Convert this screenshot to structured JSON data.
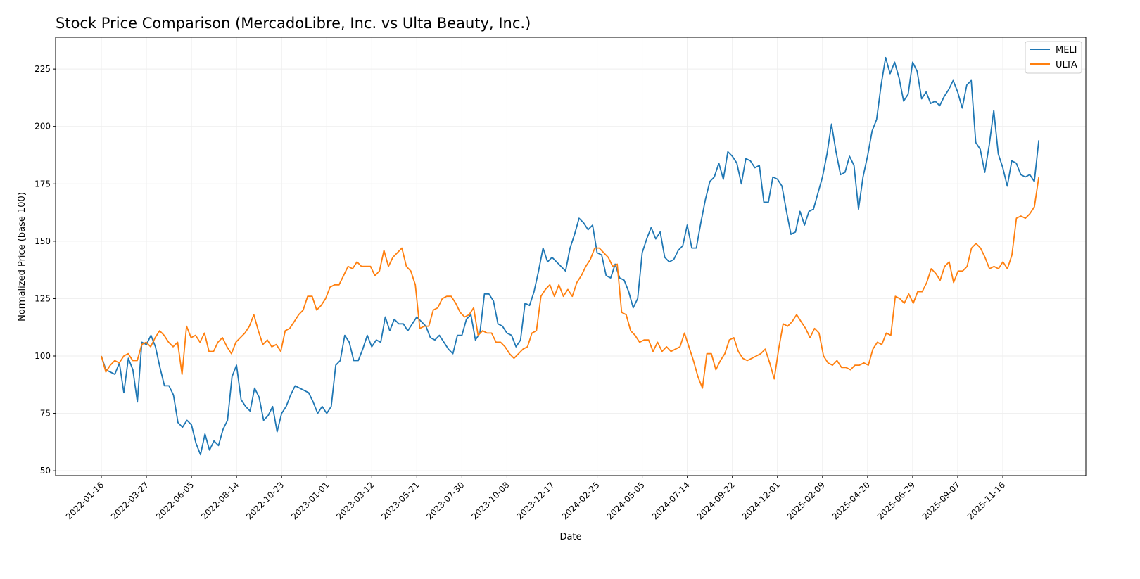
{
  "chart_data": {
    "type": "line",
    "title": "Stock Price Comparison (MercadoLibre, Inc. vs Ulta Beauty, Inc.)",
    "xlabel": "Date",
    "ylabel": "Normalized Price (base 100)",
    "ylim": [
      48,
      239
    ],
    "yticks": [
      50,
      75,
      100,
      125,
      150,
      175,
      200,
      225
    ],
    "xticks": [
      "2022-01-16",
      "2022-03-27",
      "2022-06-05",
      "2022-08-14",
      "2022-10-23",
      "2023-01-01",
      "2023-03-12",
      "2023-05-21",
      "2023-07-30",
      "2023-10-08",
      "2023-12-17",
      "2024-02-25",
      "2024-05-05",
      "2024-07-14",
      "2024-09-22",
      "2024-12-01",
      "2025-02-09",
      "2025-04-20",
      "2025-06-29",
      "2025-09-07",
      "2025-11-16"
    ],
    "x_start": "2022-01-16",
    "x_end": "2026-01-11",
    "grid": true,
    "legend": "top-right",
    "series": [
      {
        "name": "MELI",
        "color": "#1f77b4",
        "values": [
          100,
          94,
          93,
          92,
          97,
          84,
          99,
          94,
          80,
          106,
          105,
          109,
          104,
          95,
          87,
          87,
          83,
          71,
          69,
          72,
          70,
          62,
          57,
          66,
          59,
          63,
          61,
          68,
          72,
          91,
          96,
          81,
          78,
          76,
          86,
          82,
          72,
          74,
          78,
          67,
          75,
          78,
          83,
          87,
          86,
          85,
          84,
          80,
          75,
          78,
          75,
          78,
          96,
          98,
          109,
          106,
          98,
          98,
          103,
          109,
          104,
          107,
          106,
          117,
          111,
          116,
          114,
          114,
          111,
          114,
          117,
          115,
          113,
          108,
          107,
          109,
          106,
          103,
          101,
          109,
          109,
          116,
          118,
          107,
          110,
          127,
          127,
          124,
          114,
          113,
          110,
          109,
          104,
          107,
          123,
          122,
          128,
          137,
          147,
          141,
          143,
          141,
          139,
          137,
          147,
          153,
          160,
          158,
          155,
          157,
          145,
          144,
          135,
          134,
          140,
          134,
          133,
          128,
          121,
          125,
          145,
          151,
          156,
          151,
          154,
          143,
          141,
          142,
          146,
          148,
          157,
          147,
          147,
          158,
          168,
          176,
          178,
          184,
          177,
          189,
          187,
          184,
          175,
          186,
          185,
          182,
          183,
          167,
          167,
          178,
          177,
          174,
          163,
          153,
          154,
          163,
          157,
          163,
          164,
          171,
          178,
          188,
          201,
          189,
          179,
          180,
          187,
          183,
          164,
          178,
          187,
          198,
          203,
          218,
          230,
          223,
          228,
          221,
          211,
          214,
          228,
          224,
          212,
          215,
          210,
          211,
          209,
          213,
          216,
          220,
          215,
          208,
          218,
          220,
          193,
          190,
          180,
          192,
          207,
          188,
          182,
          174,
          185,
          184,
          179,
          178,
          179,
          176,
          194
        ]
      },
      {
        "name": "ULTA",
        "color": "#ff7f0e",
        "values": [
          100,
          93,
          96,
          98,
          97,
          100,
          101,
          98,
          98,
          105,
          106,
          104,
          108,
          111,
          109,
          106,
          104,
          106,
          92,
          113,
          108,
          109,
          106,
          110,
          102,
          102,
          106,
          108,
          104,
          101,
          106,
          108,
          110,
          113,
          118,
          111,
          105,
          107,
          104,
          105,
          102,
          111,
          112,
          115,
          118,
          120,
          126,
          126,
          120,
          122,
          125,
          130,
          131,
          131,
          135,
          139,
          138,
          141,
          139,
          139,
          139,
          135,
          137,
          146,
          139,
          143,
          145,
          147,
          139,
          137,
          131,
          112,
          113,
          113,
          120,
          121,
          125,
          126,
          126,
          123,
          119,
          117,
          118,
          121,
          109,
          111,
          110,
          110,
          106,
          106,
          104,
          101,
          99,
          101,
          103,
          104,
          110,
          111,
          126,
          129,
          131,
          126,
          131,
          126,
          129,
          126,
          132,
          135,
          139,
          142,
          147,
          147,
          145,
          143,
          139,
          140,
          119,
          118,
          111,
          109,
          106,
          107,
          107,
          102,
          106,
          102,
          104,
          102,
          103,
          104,
          110,
          104,
          98,
          91,
          86,
          101,
          101,
          94,
          98,
          101,
          107,
          108,
          102,
          99,
          98,
          99,
          100,
          101,
          103,
          97,
          90,
          103,
          114,
          113,
          115,
          118,
          115,
          112,
          108,
          112,
          110,
          100,
          97,
          96,
          98,
          95,
          95,
          94,
          96,
          96,
          97,
          96,
          103,
          106,
          105,
          110,
          109,
          126,
          125,
          123,
          127,
          123,
          128,
          128,
          132,
          138,
          136,
          133,
          139,
          141,
          132,
          137,
          137,
          139,
          147,
          149,
          147,
          143,
          138,
          139,
          138,
          141,
          138,
          144,
          160,
          161,
          160,
          162,
          165,
          178
        ]
      }
    ]
  }
}
